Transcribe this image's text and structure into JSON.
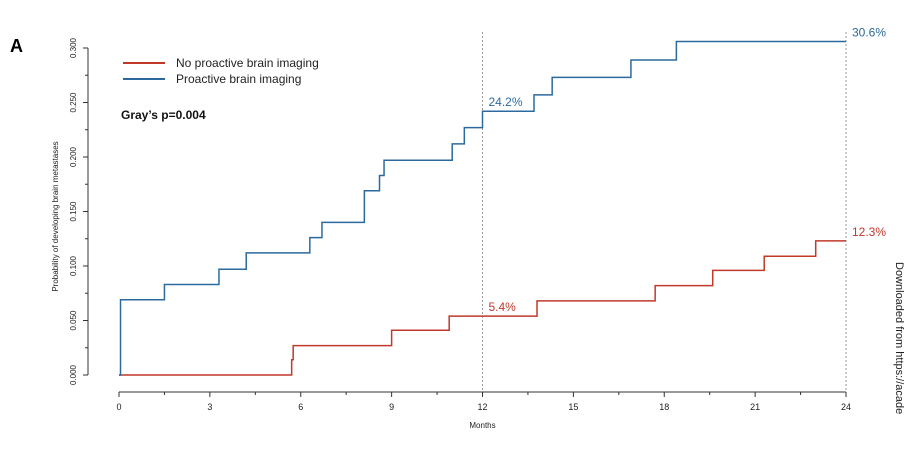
{
  "figure": {
    "panel_label": "A",
    "side_text": "Downloaded from https://acade"
  },
  "chart_data": {
    "type": "line",
    "title": "",
    "xlabel": "Months",
    "ylabel": "Probability of developing brain metastases",
    "xlim": [
      0,
      24
    ],
    "ylim": [
      0,
      0.3
    ],
    "x_ticks": [
      0,
      3,
      6,
      9,
      12,
      15,
      18,
      21,
      24
    ],
    "y_ticks": [
      0.0,
      0.05,
      0.1,
      0.15,
      0.2,
      0.25,
      0.3
    ],
    "y_tick_labels": [
      "0.000",
      "0.050",
      "0.100",
      "0.150",
      "0.200",
      "0.250",
      "0.300"
    ],
    "grid": false,
    "legend_position": "top-left",
    "reference_lines_x": [
      12,
      24
    ],
    "annotation": "Gray’s p=0.004",
    "series": [
      {
        "name": "No proactive brain imaging",
        "color": "#c0392b",
        "step": true,
        "x": [
          0,
          5.7,
          5.75,
          9.0,
          10.9,
          13.8,
          17.7,
          19.6,
          21.3,
          23.0,
          24
        ],
        "y": [
          0.0,
          0.014,
          0.027,
          0.041,
          0.054,
          0.068,
          0.082,
          0.096,
          0.109,
          0.123,
          0.123
        ],
        "labels": [
          {
            "x": 12,
            "y": 0.054,
            "text": "5.4%"
          },
          {
            "x": 24,
            "y": 0.123,
            "text": "12.3%"
          }
        ]
      },
      {
        "name": "Proactive brain imaging",
        "color": "#2c6a9e",
        "step": true,
        "x": [
          0,
          0.05,
          1.5,
          3.3,
          4.2,
          6.3,
          6.7,
          8.1,
          8.6,
          8.75,
          11.0,
          11.4,
          12.0,
          13.7,
          14.3,
          16.9,
          18.4,
          24
        ],
        "y": [
          0.0,
          0.069,
          0.083,
          0.097,
          0.112,
          0.126,
          0.14,
          0.169,
          0.183,
          0.197,
          0.212,
          0.227,
          0.242,
          0.257,
          0.273,
          0.289,
          0.306,
          0.306
        ],
        "labels": [
          {
            "x": 12,
            "y": 0.242,
            "text": "24.2%"
          },
          {
            "x": 24,
            "y": 0.306,
            "text": "30.6%"
          }
        ]
      }
    ]
  }
}
